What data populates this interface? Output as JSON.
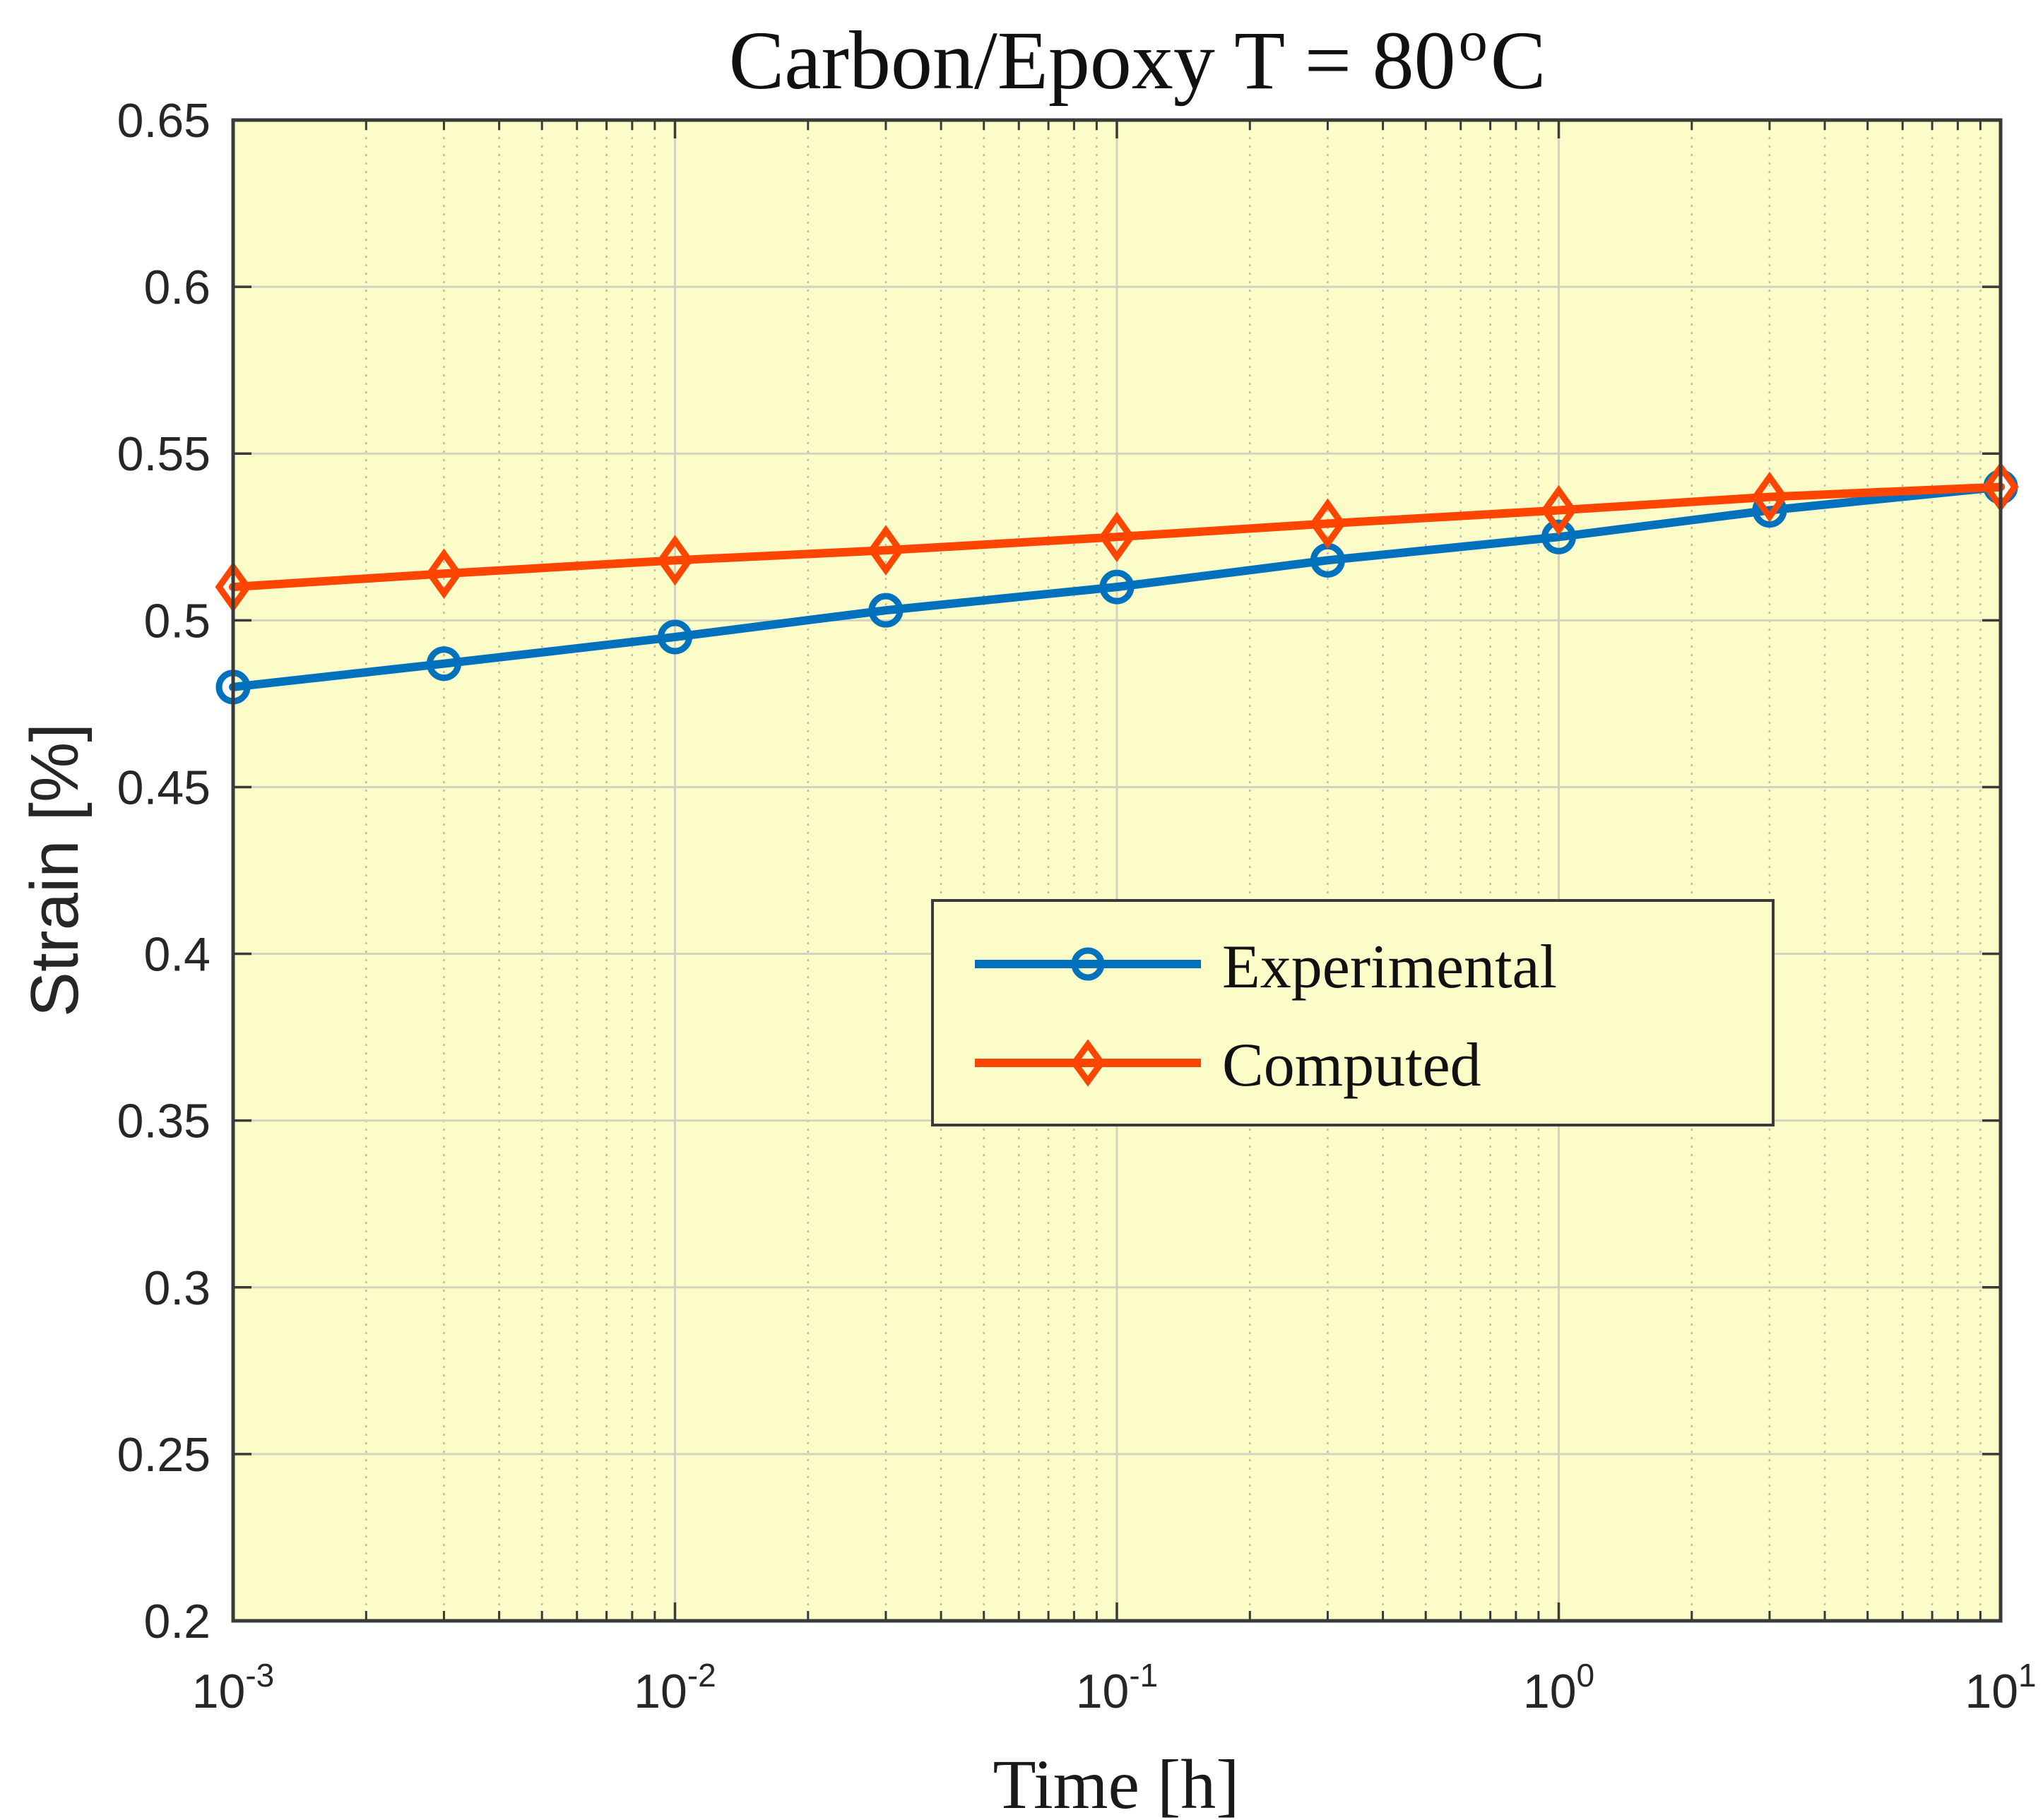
{
  "chart_data": {
    "type": "line",
    "title": "Carbon/Epoxy  T = 80",
    "title_unit_sup": "o",
    "title_unit": "C",
    "xlabel": "Time [h]",
    "ylabel": "Strain [%]",
    "xscale": "log",
    "xlim": [
      0.001,
      10
    ],
    "ylim": [
      0.2,
      0.65
    ],
    "grid": true,
    "minor_grid": true,
    "plot_background": "#fcfcc8",
    "legend_position": "center-right",
    "x_ticks": [
      {
        "base": "10",
        "exp": "-3",
        "value": 0.001
      },
      {
        "base": "10",
        "exp": "-2",
        "value": 0.01
      },
      {
        "base": "10",
        "exp": "-1",
        "value": 0.1
      },
      {
        "base": "10",
        "exp": "0",
        "value": 1
      },
      {
        "base": "10",
        "exp": "1",
        "value": 10
      }
    ],
    "y_ticks": [
      "0.2",
      "0.25",
      "0.3",
      "0.35",
      "0.4",
      "0.45",
      "0.5",
      "0.55",
      "0.6",
      "0.65"
    ],
    "x": [
      0.001,
      0.003,
      0.01,
      0.03,
      0.1,
      0.3,
      1,
      3,
      10
    ],
    "series": [
      {
        "name": "Experimental",
        "marker": "circle",
        "color": "#0072BD",
        "values": [
          0.48,
          0.487,
          0.495,
          0.503,
          0.51,
          0.518,
          0.525,
          0.533,
          0.54
        ]
      },
      {
        "name": "Computed",
        "marker": "diamond",
        "color": "#FF4500",
        "values": [
          0.51,
          0.514,
          0.518,
          0.521,
          0.525,
          0.529,
          0.533,
          0.537,
          0.54
        ]
      }
    ]
  }
}
